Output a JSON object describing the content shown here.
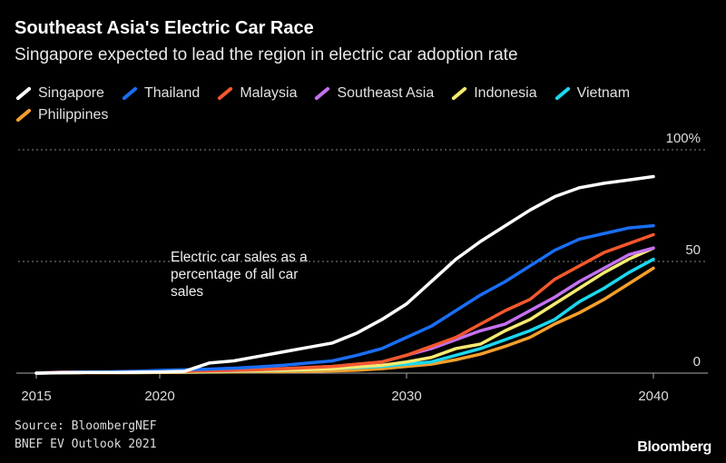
{
  "title": "Southeast Asia's Electric Car Race",
  "subtitle": "Singapore expected to lead the region in electric car adoption rate",
  "source": [
    "Source: BloombergNEF",
    "BNEF EV Outlook 2021"
  ],
  "logo": "Bloomberg",
  "chart_data": {
    "type": "line",
    "title": "Southeast Asia's Electric Car Race",
    "subtitle": "Singapore expected to lead the region in electric car adoption rate",
    "annotation": "Electric car sales as a percentage of all car sales",
    "x": [
      2015,
      2016,
      2017,
      2018,
      2019,
      2020,
      2021,
      2022,
      2023,
      2024,
      2025,
      2026,
      2027,
      2028,
      2029,
      2030,
      2031,
      2032,
      2033,
      2034,
      2035,
      2036,
      2037,
      2038,
      2039,
      2040
    ],
    "xlim": [
      2015,
      2040
    ],
    "ylim": [
      0,
      100
    ],
    "x_ticks": [
      "2015",
      "2020",
      "2030",
      "2040"
    ],
    "y_ticks": [
      "100%",
      "50",
      "0"
    ],
    "grid": "horizontal dotted",
    "legend": "top",
    "series": [
      {
        "name": "Singapore",
        "color": "#ffffff",
        "values": [
          0,
          0.2,
          0.3,
          0.3,
          0.4,
          0.5,
          0.8,
          4.5,
          5.5,
          7.5,
          9.5,
          11.5,
          13.5,
          18,
          24,
          31,
          41,
          51,
          59,
          66,
          73,
          79,
          83,
          85,
          86.5,
          88
        ]
      },
      {
        "name": "Thailand",
        "color": "#1a6ef5",
        "values": [
          0,
          0.3,
          0.5,
          0.6,
          0.8,
          1.2,
          1.5,
          1.8,
          2.2,
          2.8,
          3.5,
          4.5,
          5.5,
          8,
          11,
          16,
          21,
          28,
          35,
          41,
          48,
          55,
          60,
          62.5,
          65,
          66
        ]
      },
      {
        "name": "Malaysia",
        "color": "#f4572d",
        "values": [
          0,
          0.5,
          0.5,
          0.5,
          0.6,
          0.7,
          0.8,
          1,
          1.3,
          1.6,
          2,
          2.5,
          3,
          4,
          5,
          8,
          12,
          16,
          22,
          28,
          33,
          42,
          48,
          54,
          58,
          62
        ]
      },
      {
        "name": "Southeast Asia",
        "color": "#c471f2",
        "values": [
          0,
          0.3,
          0.4,
          0.5,
          0.6,
          0.7,
          0.8,
          1,
          1.2,
          1.5,
          2,
          2.5,
          3,
          4,
          5,
          8,
          11,
          15,
          19,
          22,
          28,
          34,
          41,
          47,
          53,
          56
        ]
      },
      {
        "name": "Indonesia",
        "color": "#f6eb70",
        "values": [
          0,
          0.2,
          0.3,
          0.3,
          0.4,
          0.5,
          0.6,
          0.7,
          0.9,
          1.1,
          1.3,
          1.6,
          2,
          2.8,
          3.5,
          5,
          7,
          11,
          13,
          19,
          24,
          31,
          38,
          45,
          51,
          56
        ]
      },
      {
        "name": "Vietnam",
        "color": "#1ad8ee",
        "values": [
          0,
          0.2,
          0.3,
          0.3,
          0.4,
          0.5,
          0.5,
          0.6,
          0.8,
          1,
          1.2,
          1.5,
          2,
          2.5,
          3,
          4,
          5,
          8,
          11,
          15,
          19,
          24,
          32,
          38,
          45,
          51
        ]
      },
      {
        "name": "Philippines",
        "color": "#f59f2b",
        "values": [
          0,
          0.1,
          0.2,
          0.2,
          0.2,
          0.3,
          0.3,
          0.4,
          0.5,
          0.6,
          0.7,
          0.8,
          1,
          1.3,
          2,
          3,
          4,
          6,
          8.5,
          12,
          16,
          22,
          27,
          33,
          40,
          47
        ]
      }
    ]
  }
}
